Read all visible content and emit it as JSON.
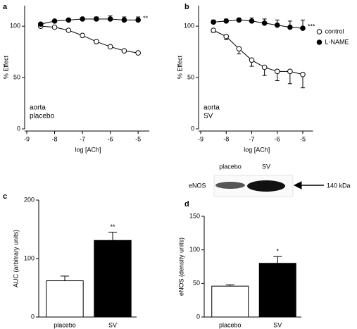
{
  "chart_data": [
    {
      "type": "line",
      "panel_label": "a",
      "xlabel": "log [ACh]",
      "ylabel": "% Effect",
      "annotation": "**",
      "text": [
        "aorta",
        "placebo"
      ],
      "x": [
        -8.5,
        -8,
        -7.5,
        -7,
        -6.5,
        -6,
        -5.5,
        -5
      ],
      "xlim": [
        -9,
        -4.6
      ],
      "xticks": [
        -9,
        -8,
        -7,
        -6,
        -5
      ],
      "ylim": [
        0,
        120
      ],
      "yticks": [
        0,
        50,
        100
      ],
      "series": [
        {
          "color": "#ffffff",
          "error_direction": "down",
          "values": [
            100,
            99,
            96,
            91,
            85,
            80,
            76,
            74
          ],
          "errors": [
            1,
            1,
            1,
            1,
            1,
            1,
            1,
            1
          ]
        },
        {
          "color": "#000000",
          "error_direction": "up",
          "values": [
            102,
            105,
            106,
            107,
            107,
            107,
            106,
            106
          ],
          "errors": [
            1,
            1,
            1,
            1,
            2,
            3,
            3,
            3
          ]
        }
      ]
    },
    {
      "type": "line",
      "panel_label": "b",
      "xlabel": "log [ACh]",
      "ylabel": "% Effect",
      "annotation": "***",
      "text": [
        "aorta",
        "SV"
      ],
      "legend": "right",
      "x": [
        -8.5,
        -8,
        -7.5,
        -7,
        -6.5,
        -6,
        -5.5,
        -5
      ],
      "xlim": [
        -9,
        -4.6
      ],
      "xticks": [
        -9,
        -8,
        -7,
        -6,
        -5
      ],
      "ylim": [
        0,
        120
      ],
      "yticks": [
        0,
        50,
        100
      ],
      "series": [
        {
          "name": "control",
          "color": "#ffffff",
          "error_direction": "down",
          "values": [
            96,
            90,
            78,
            67,
            60,
            56,
            56,
            53
          ],
          "errors": [
            2,
            3,
            5,
            6,
            8,
            9,
            12,
            13
          ]
        },
        {
          "name": "L-NAME",
          "color": "#000000",
          "error_direction": "up",
          "values": [
            104,
            105,
            106,
            105,
            103,
            101,
            99,
            98
          ],
          "errors": [
            2,
            2,
            2,
            3,
            4,
            5,
            6,
            8
          ]
        }
      ]
    },
    {
      "type": "bar",
      "panel_label": "c",
      "ylabel": "AUC (arbitrary units)",
      "categories": [
        "placebo",
        "SV"
      ],
      "values": [
        62,
        131
      ],
      "errors": [
        8,
        14
      ],
      "colors": [
        "#ffffff",
        "#000000"
      ],
      "annotation": {
        "text": "**",
        "category": "SV"
      },
      "ylim": [
        0,
        200
      ],
      "yticks": [
        0,
        100,
        200
      ]
    },
    {
      "type": "bar",
      "panel_label": "d",
      "ylabel": "eNOS (density units)",
      "categories": [
        "placebo",
        "SV"
      ],
      "values": [
        46,
        80
      ],
      "errors": [
        2,
        10
      ],
      "colors": [
        "#ffffff",
        "#000000"
      ],
      "annotation": {
        "text": "*",
        "category": "SV"
      },
      "ylim": [
        0,
        150
      ],
      "yticks": [
        0,
        50,
        100,
        150
      ]
    }
  ],
  "blot": {
    "lanes": [
      "placebo",
      "SV"
    ],
    "protein": "eNOS",
    "marker": "140 kDa"
  }
}
